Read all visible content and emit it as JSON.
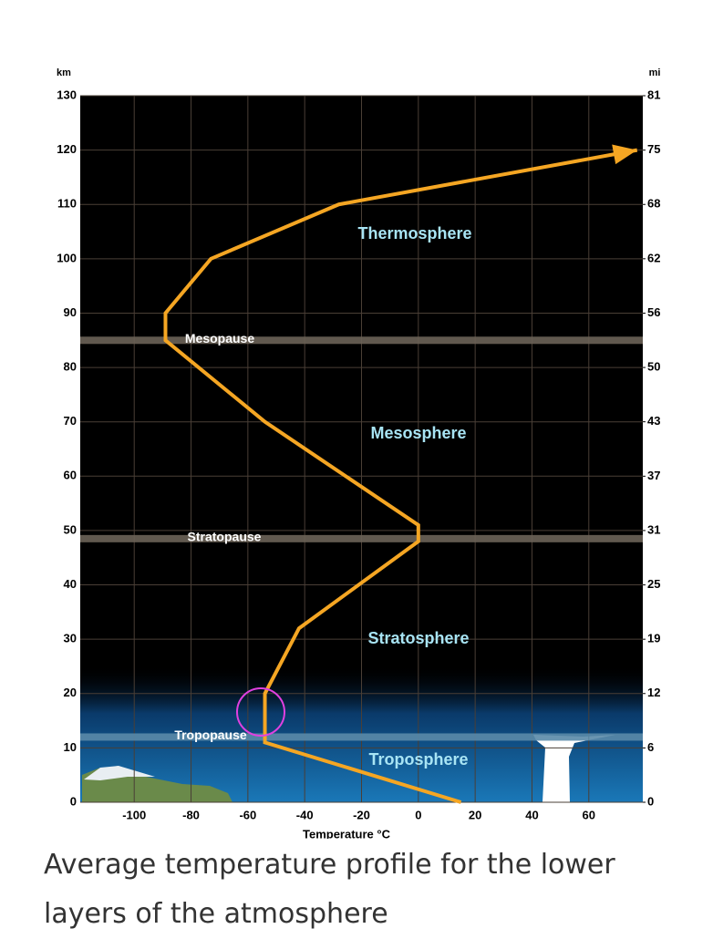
{
  "chart_data": {
    "type": "line",
    "x_label": "Temperature  °C",
    "y_label": "km",
    "y2_label": "mi",
    "x": [
      15,
      -54,
      -54,
      -42,
      0,
      0,
      -54,
      -89,
      -89,
      -73,
      -28,
      77
    ],
    "values": [
      0,
      11,
      20,
      32,
      48,
      51,
      70,
      85,
      90,
      100,
      110,
      120
    ],
    "color": "#f5a623",
    "xlim": [
      -119,
      79
    ],
    "ylim": [
      0,
      130
    ],
    "xticks": [
      -100,
      -80,
      -60,
      -40,
      -20,
      0,
      20,
      40,
      60
    ],
    "yticks": [
      0,
      10,
      20,
      30,
      40,
      50,
      60,
      70,
      80,
      90,
      100,
      110,
      120,
      130
    ],
    "y2lim": [
      0,
      80.78
    ],
    "y2ticks": [
      {
        "value": 0,
        "label": "0"
      },
      {
        "value": 6.21,
        "label": "6"
      },
      {
        "value": 12.43,
        "label": "12"
      },
      {
        "value": 18.64,
        "label": "19"
      },
      {
        "value": 24.85,
        "label": "25"
      },
      {
        "value": 31.07,
        "label": "31"
      },
      {
        "value": 37.28,
        "label": "37"
      },
      {
        "value": 43.5,
        "label": "43"
      },
      {
        "value": 49.71,
        "label": "50"
      },
      {
        "value": 55.92,
        "label": "56"
      },
      {
        "value": 62.14,
        "label": "62"
      },
      {
        "value": 68.35,
        "label": "68"
      },
      {
        "value": 74.56,
        "label": "75"
      },
      {
        "value": 80.78,
        "label": "81"
      }
    ],
    "grid": true,
    "boundaries": [
      {
        "label": "Mesopause",
        "y": 85
      },
      {
        "label": "Stratopause",
        "y": 48.5
      },
      {
        "label": "Tropopause",
        "y": 12
      }
    ],
    "layers": [
      "Thermosphere",
      "Mesosphere",
      "Stratosphere",
      "Troposphere"
    ]
  },
  "caption": "Average temperature profile for the lower layers of the atmosphere"
}
